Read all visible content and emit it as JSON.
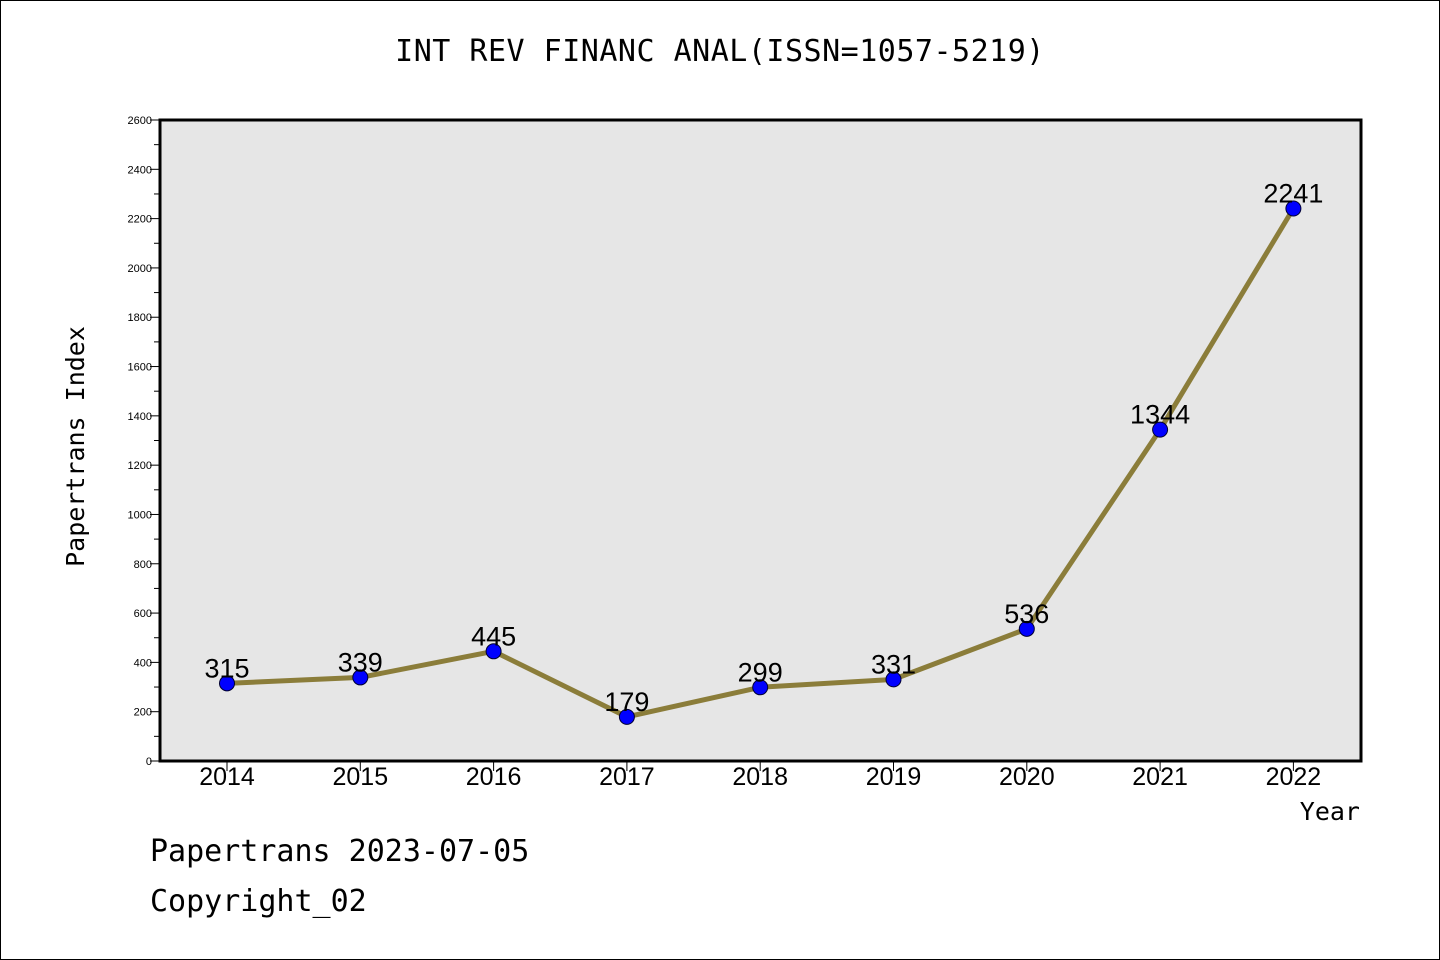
{
  "chart_data": {
    "type": "line",
    "title": "INT REV FINANC ANAL(ISSN=1057-5219)",
    "xlabel": "Year",
    "ylabel": "Papertrans Index",
    "categories": [
      "2014",
      "2015",
      "2016",
      "2017",
      "2018",
      "2019",
      "2020",
      "2021",
      "2022"
    ],
    "series": [
      {
        "values": [
          315,
          339,
          445,
          179,
          299,
          331,
          536,
          1344,
          2241
        ]
      }
    ],
    "data_labels": [
      "315",
      "339",
      "445",
      "179",
      "299",
      "331",
      "536",
      "1344",
      "2241"
    ],
    "ylim": [
      0,
      2600
    ],
    "yticks": [
      "0",
      "200",
      "400",
      "600",
      "800",
      "1000",
      "1200",
      "1400",
      "1600",
      "1800",
      "2000",
      "2200",
      "2400",
      "2600"
    ],
    "grid": false,
    "colors": {
      "line": "#8B7D3A",
      "marker": "#0000FF",
      "plot_bg": "#E6E6E6"
    }
  },
  "footer": {
    "line1": "Papertrans 2023-07-05",
    "line2": "Copyright_02"
  }
}
